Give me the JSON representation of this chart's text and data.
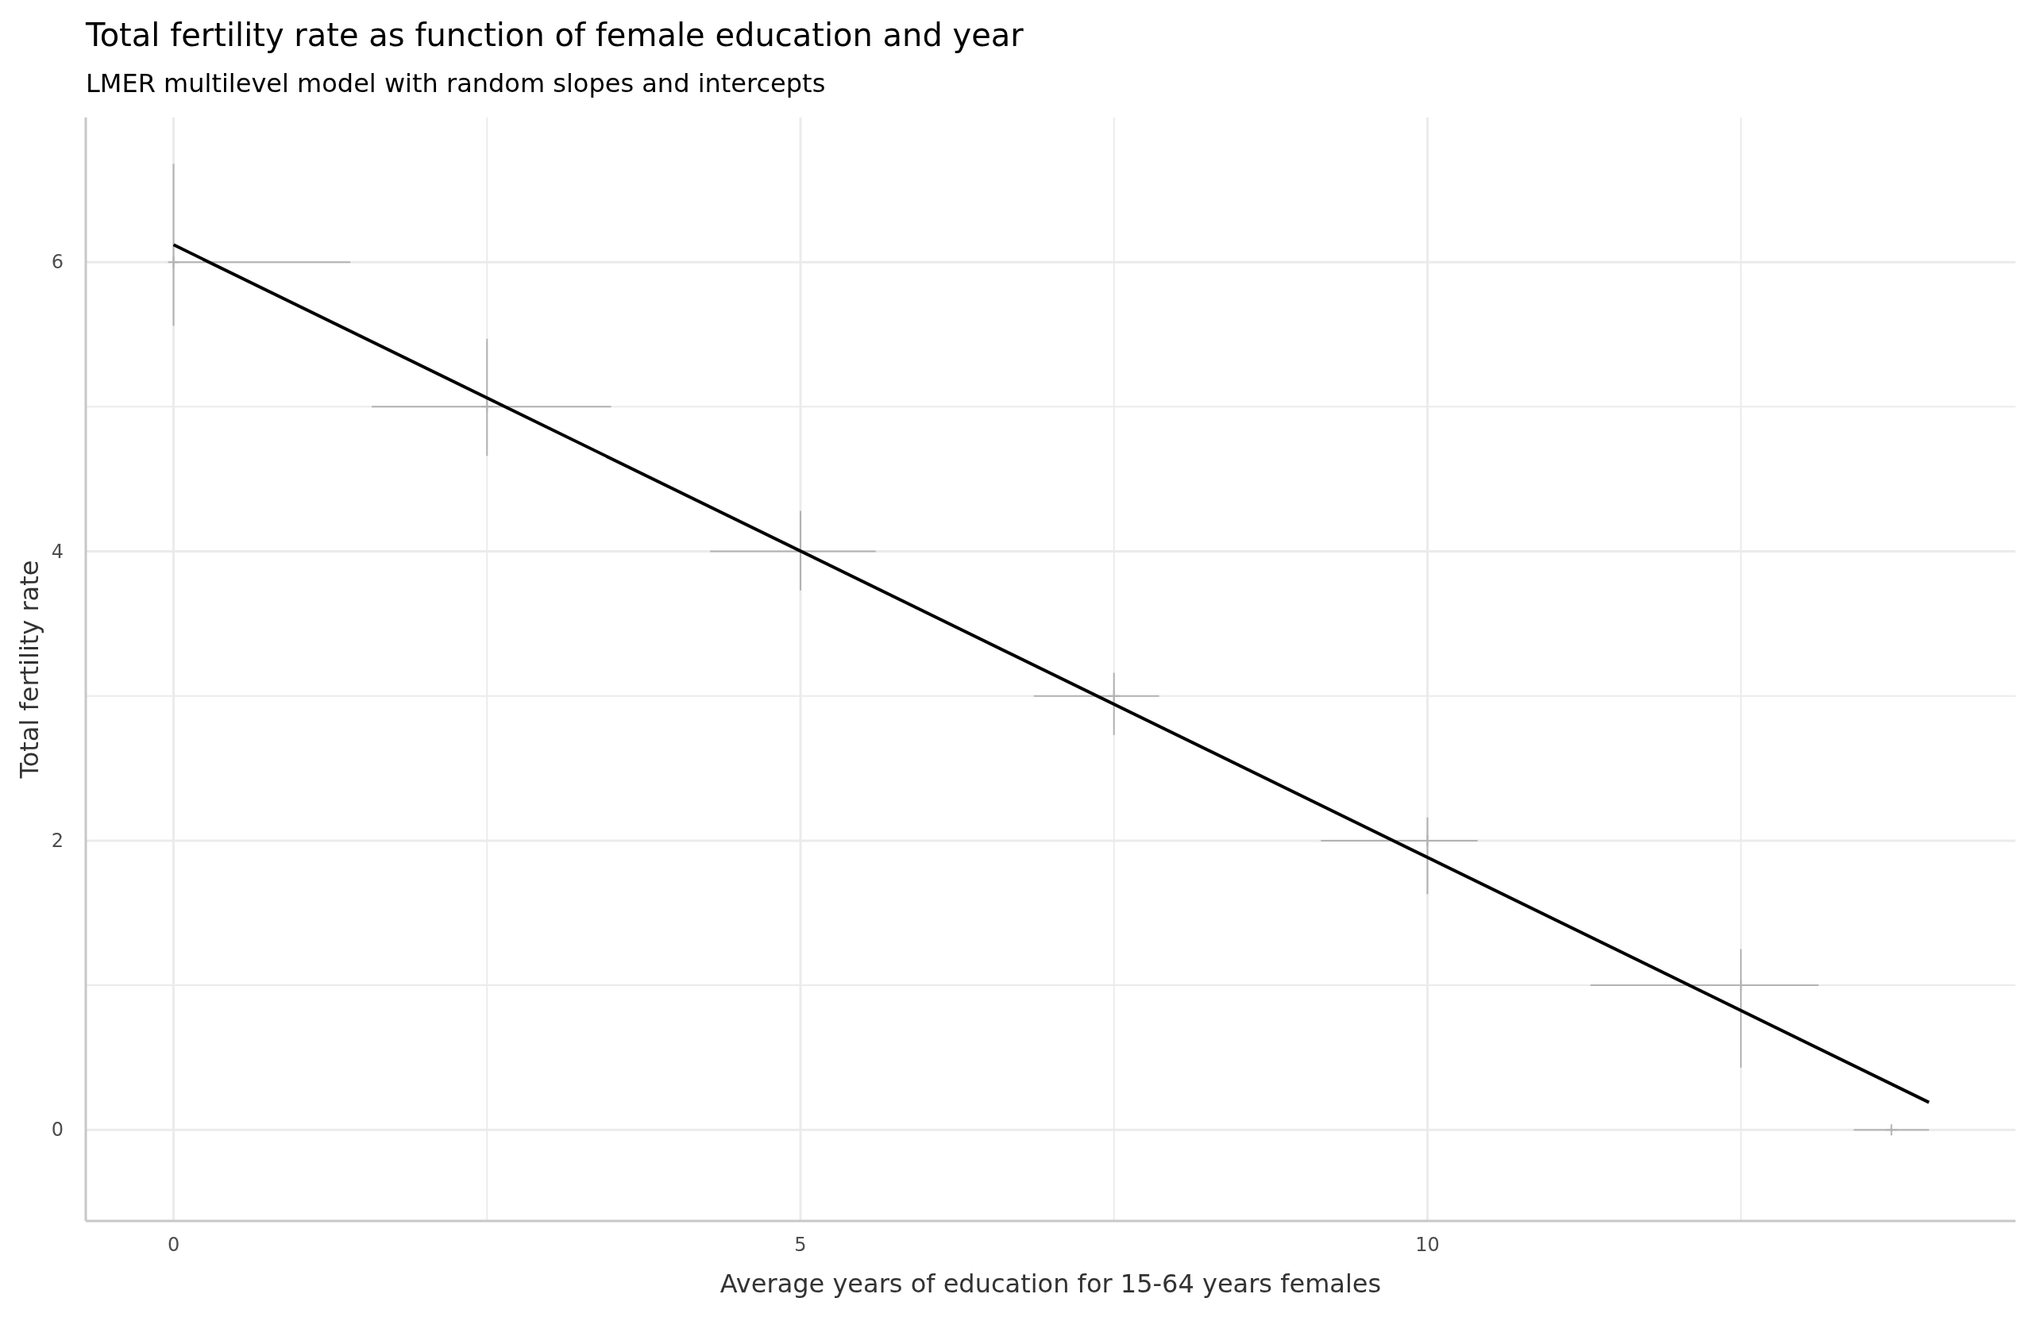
{
  "chart_data": {
    "type": "scatter",
    "title": "Total fertility rate as function of female education and year",
    "subtitle": "LMER multilevel model with random slopes and intercepts",
    "xlabel": "Average years of education for 15-64 years females",
    "ylabel": "Total fertility rate",
    "xlim": [
      -0.7,
      14.69
    ],
    "ylim": [
      -0.63,
      7.0
    ],
    "xticks": [
      0,
      {
        "value": 2.5,
        "label": null
      },
      5,
      {
        "value": 7.5,
        "label": null
      },
      10,
      {
        "value": 12.5,
        "label": null
      }
    ],
    "yticks": [
      0,
      {
        "value": 1,
        "label": null
      },
      2,
      {
        "value": 3,
        "label": null
      },
      4,
      {
        "value": 5,
        "label": null
      },
      6
    ],
    "grid": true,
    "series": [
      {
        "type": "scatter",
        "marker": "cross",
        "color": "#b3b3b3",
        "x": [
          0,
          2.5,
          5,
          7.5,
          10,
          12.5,
          13.7
        ],
        "values": [
          6,
          5,
          4,
          3,
          2,
          1,
          0
        ],
        "errors": [
          [
            5.56,
            6.68
          ],
          [
            4.66,
            5.47
          ],
          [
            3.73,
            4.28
          ],
          [
            2.73,
            3.16
          ],
          [
            1.63,
            2.16
          ],
          [
            0.43,
            1.25
          ],
          [
            -0.01,
            0.01
          ]
        ],
        "xerrors": [
          [
            0,
            1.41
          ],
          [
            1.58,
            3.49
          ],
          [
            4.28,
            5.6
          ],
          [
            6.86,
            7.86
          ],
          [
            9.15,
            10.4
          ],
          [
            11.3,
            13.12
          ],
          [
            13.4,
            14.0
          ]
        ]
      },
      {
        "type": "line",
        "color": "#000000",
        "line_style": "solid",
        "x": [
          0,
          14
        ],
        "values": [
          6.12,
          0.19
        ]
      }
    ]
  }
}
